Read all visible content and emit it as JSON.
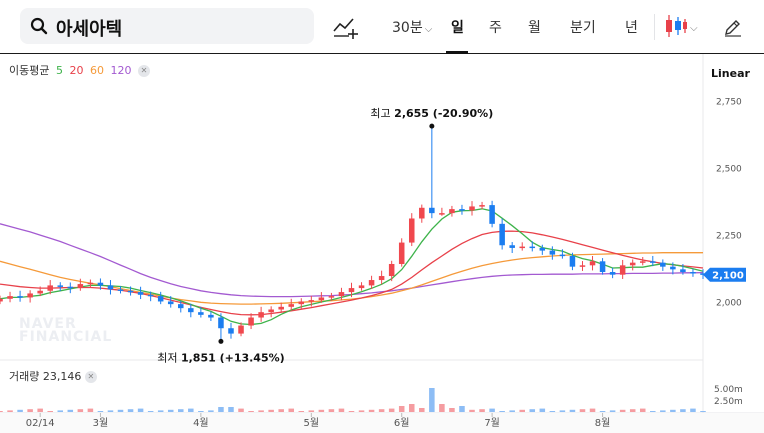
{
  "search": {
    "query": "아세아텍"
  },
  "toolbar": {
    "interval_label": "30분",
    "period_day": "일",
    "period_week": "주",
    "period_month": "월",
    "period_quarter": "분기",
    "period_year": "년"
  },
  "legend": {
    "ma_label": "이동평균",
    "ma5": "5",
    "ma20": "20",
    "ma60": "60",
    "ma120": "120",
    "volume_label": "거래량",
    "volume_value": "23,146"
  },
  "scale_label": "Linear",
  "watermark": {
    "line1": "NAVER",
    "line2": "FINANCIAL"
  },
  "colors": {
    "up": "#f0484e",
    "down": "#1b7df0",
    "ma5": "#3eb34b",
    "ma20": "#e8414a",
    "ma60": "#f59a3a",
    "ma120": "#a35ad1",
    "price_tag": "#1b7df0"
  },
  "chart_data": {
    "type": "candlestick",
    "y_ticks": [
      "2,750",
      "2,500",
      "2,250",
      "2,000"
    ],
    "y_tick_values": [
      2750,
      2500,
      2250,
      2000
    ],
    "ylim": [
      1800,
      2790
    ],
    "x_ticks": [
      "02/14",
      "3월",
      "4월",
      "5월",
      "6월",
      "7월",
      "8월"
    ],
    "x_tick_values": [
      4,
      10,
      20,
      31,
      40,
      49,
      60
    ],
    "x_range": [
      0,
      70
    ],
    "current_price": "2,100",
    "current_value": 2100,
    "high_annotation": {
      "prefix": "최고",
      "value": "2,655",
      "change": "(-20.90%)",
      "x": 43,
      "y": 2655
    },
    "low_annotation": {
      "prefix": "최저",
      "value": "1,851",
      "change": "(+13.45%)",
      "x": 22,
      "y": 1851
    },
    "closes": [
      2010,
      2020,
      2015,
      2030,
      2040,
      2060,
      2055,
      2050,
      2065,
      2070,
      2060,
      2045,
      2040,
      2035,
      2025,
      2020,
      2000,
      1990,
      1975,
      1960,
      1950,
      1940,
      1900,
      1880,
      1910,
      1940,
      1960,
      1970,
      1980,
      1990,
      2000,
      2005,
      2015,
      2020,
      2035,
      2050,
      2060,
      2080,
      2095,
      2140,
      2220,
      2310,
      2350,
      2330,
      2330,
      2345,
      2340,
      2355,
      2360,
      2290,
      2210,
      2200,
      2205,
      2200,
      2190,
      2175,
      2170,
      2130,
      2135,
      2150,
      2110,
      2100,
      2135,
      2145,
      2150,
      2145,
      2130,
      2120,
      2110,
      2105,
      2100
    ],
    "ma120": [
      2290,
      2280,
      2270,
      2260,
      2248,
      2236,
      2224,
      2210,
      2196,
      2182,
      2168,
      2152,
      2136,
      2120,
      2104,
      2090,
      2078,
      2066,
      2056,
      2048,
      2040,
      2034,
      2029,
      2025,
      2022,
      2020,
      2019,
      2018,
      2018,
      2018,
      2019,
      2020,
      2021,
      2022,
      2024,
      2026,
      2029,
      2032,
      2036,
      2040,
      2045,
      2050,
      2056,
      2062,
      2068,
      2074,
      2080,
      2085,
      2090,
      2094,
      2097,
      2099,
      2100,
      2101,
      2101,
      2102,
      2102,
      2102,
      2103,
      2103,
      2103,
      2104,
      2104,
      2105,
      2105,
      2105,
      2106,
      2106,
      2107,
      2107,
      2108
    ],
    "ma60": [
      2150,
      2140,
      2130,
      2120,
      2110,
      2100,
      2090,
      2082,
      2075,
      2068,
      2062,
      2055,
      2048,
      2041,
      2034,
      2027,
      2020,
      2013,
      2007,
      2002,
      1997,
      1994,
      1992,
      1991,
      1990,
      1990,
      1991,
      1992,
      1993,
      1995,
      1997,
      1999,
      2001,
      2003,
      2006,
      2009,
      2013,
      2018,
      2024,
      2031,
      2040,
      2050,
      2062,
      2075,
      2088,
      2101,
      2113,
      2124,
      2134,
      2142,
      2149,
      2155,
      2160,
      2164,
      2167,
      2170,
      2172,
      2174,
      2175,
      2176,
      2177,
      2178,
      2179,
      2180,
      2181,
      2181,
      2182,
      2182,
      2182,
      2182,
      2182
    ],
    "ma20": [
      2065,
      2060,
      2055,
      2052,
      2050,
      2050,
      2051,
      2052,
      2052,
      2052,
      2050,
      2046,
      2042,
      2036,
      2030,
      2022,
      2014,
      2005,
      1996,
      1987,
      1978,
      1970,
      1962,
      1955,
      1951,
      1950,
      1951,
      1955,
      1960,
      1965,
      1971,
      1977,
      1984,
      1991,
      1998,
      2005,
      2013,
      2022,
      2032,
      2045,
      2065,
      2090,
      2118,
      2145,
      2170,
      2195,
      2217,
      2235,
      2250,
      2258,
      2262,
      2263,
      2261,
      2256,
      2249,
      2241,
      2232,
      2222,
      2212,
      2202,
      2192,
      2182,
      2172,
      2163,
      2155,
      2148,
      2142,
      2137,
      2133,
      2129,
      2125
    ],
    "volume_ticks": [
      "5.00m",
      "2.50m"
    ],
    "volume_spike": {
      "x": 43
    }
  }
}
